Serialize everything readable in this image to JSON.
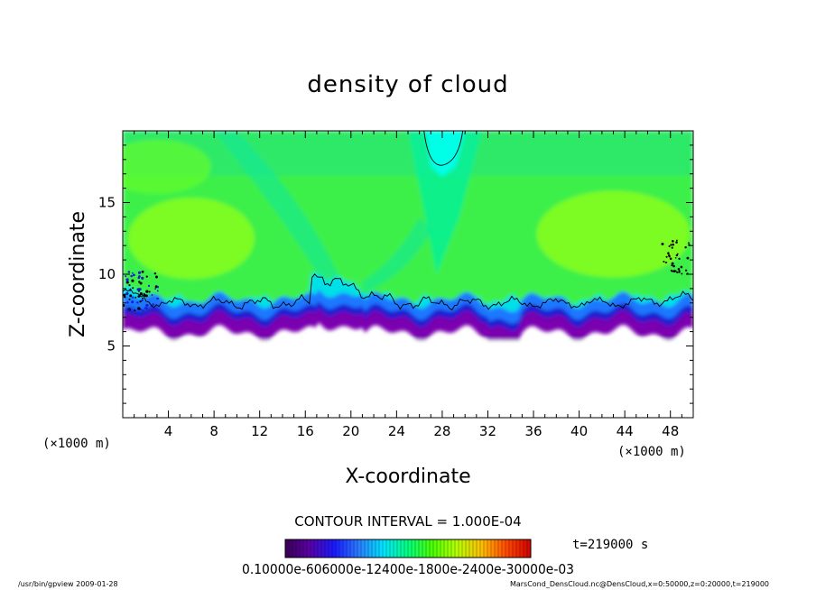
{
  "chart_data": {
    "type": "heatmap",
    "title": "density of cloud",
    "xlabel": "X-coordinate",
    "ylabel": "Z-coordinate",
    "x_unit_left": "(×1000 m)",
    "x_unit_right": "(×1000 m)",
    "xlim": [
      0,
      50
    ],
    "ylim": [
      0,
      20
    ],
    "x_ticks": [
      "4",
      "8",
      "12",
      "16",
      "20",
      "24",
      "28",
      "32",
      "36",
      "40",
      "44",
      "48"
    ],
    "y_ticks": [
      "5",
      "10",
      "15"
    ],
    "contour_interval_label": "CONTOUR INTERVAL = 1.000E-04",
    "time_label": "t=219000 s",
    "colorbar_labels_text": "0.10000e-606000e-12400e-1800e-2400e-30000e-03",
    "colormap": [
      "#3a0057",
      "#5a00a8",
      "#1a1aff",
      "#2a7dff",
      "#00e5ff",
      "#00ff7f",
      "#4cff00",
      "#b6ff00",
      "#ffbf00",
      "#ff4a00",
      "#d30000"
    ],
    "cloud_band": {
      "base_z_avg": 6.3,
      "contour_z_avg": 8.0,
      "bump_x": 17.5,
      "bump_contour_z": 9.8,
      "clear_column_x": 28,
      "clear_column_min_z": 17.6
    }
  },
  "footer": {
    "left": "/usr/bin/gpview  2009-01-28",
    "right": "MarsCond_DensCloud.nc@DensCloud,x=0:50000,z=0:20000,t=219000"
  }
}
